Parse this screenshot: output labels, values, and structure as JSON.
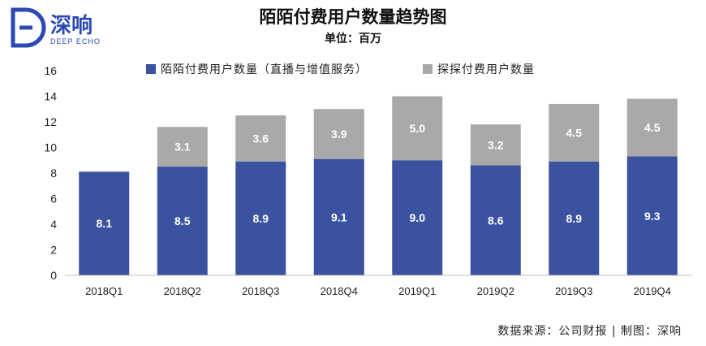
{
  "logo": {
    "brand_cn": "深响",
    "brand_en": "DEEP ECHO",
    "color": "#2b4bb3"
  },
  "source": "数据来源：公司财报 | 制图：深响",
  "colors": {
    "momo": "#3a52a0",
    "tantan": "#a9a9a9",
    "axis": "#bfbfbf"
  },
  "chart_data": {
    "type": "bar",
    "stacked": true,
    "title": "陌陌付费用户数量趋势图",
    "subtitle": "单位：百万",
    "categories": [
      "2018Q1",
      "2018Q2",
      "2018Q3",
      "2018Q4",
      "2019Q1",
      "2019Q2",
      "2019Q3",
      "2019Q4"
    ],
    "series": [
      {
        "name": "陌陌付费用户数量（直播与增值服务）",
        "values": [
          8.1,
          8.5,
          8.9,
          9.1,
          9.0,
          8.6,
          8.9,
          9.3
        ]
      },
      {
        "name": "探探付费用户数量",
        "values": [
          null,
          3.1,
          3.6,
          3.9,
          5.0,
          3.2,
          4.5,
          4.5
        ]
      }
    ],
    "ylim": [
      0,
      16
    ],
    "yticks": [
      0,
      2,
      4,
      6,
      8,
      10,
      12,
      14,
      16
    ],
    "legend_position": "top",
    "grid": false,
    "data_labels": true
  }
}
